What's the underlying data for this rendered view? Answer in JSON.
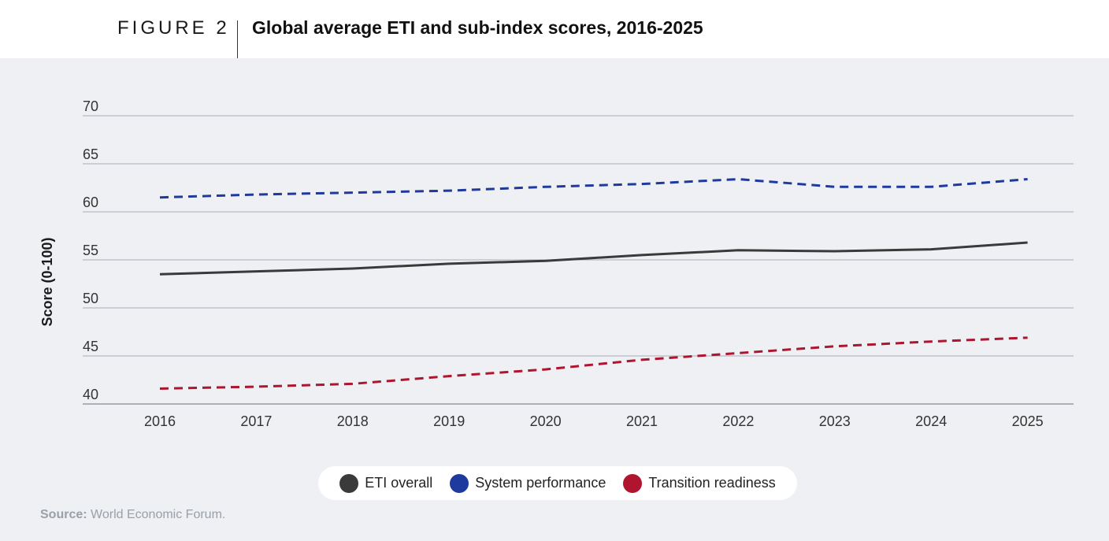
{
  "header": {
    "figure_label": "FIGURE 2",
    "title": "Global average ETI and sub-index scores, 2016-2025"
  },
  "source": {
    "label": "Source:",
    "text": "World Economic Forum."
  },
  "colors": {
    "eti_overall": "#3a3a3a",
    "system_performance": "#1e3a9e",
    "transition_readiness": "#b0152f",
    "grid": "#a9adb8",
    "panel_bg": "#eff0f4"
  },
  "chart_data": {
    "type": "line",
    "title": "Global average ETI and sub-index scores, 2016-2025",
    "xlabel": "",
    "ylabel": "Score (0-100)",
    "ylim": [
      40,
      70
    ],
    "yticks": [
      40,
      45,
      50,
      55,
      60,
      65,
      70
    ],
    "categories": [
      "2016",
      "2017",
      "2018",
      "2019",
      "2020",
      "2021",
      "2022",
      "2023",
      "2024",
      "2025"
    ],
    "grid": true,
    "legend_position": "bottom-center",
    "series": [
      {
        "name": "ETI overall",
        "style": "solid",
        "color": "#3a3a3a",
        "values": [
          53.5,
          53.8,
          54.1,
          54.6,
          54.9,
          55.5,
          56.0,
          55.9,
          56.1,
          56.8
        ]
      },
      {
        "name": "System performance",
        "style": "dashed",
        "color": "#1e3a9e",
        "values": [
          61.5,
          61.8,
          62.0,
          62.2,
          62.6,
          62.9,
          63.4,
          62.6,
          62.6,
          63.4
        ]
      },
      {
        "name": "Transition readiness",
        "style": "dashed",
        "color": "#b0152f",
        "values": [
          41.6,
          41.8,
          42.1,
          42.9,
          43.6,
          44.6,
          45.3,
          46.0,
          46.5,
          46.9
        ]
      }
    ]
  }
}
